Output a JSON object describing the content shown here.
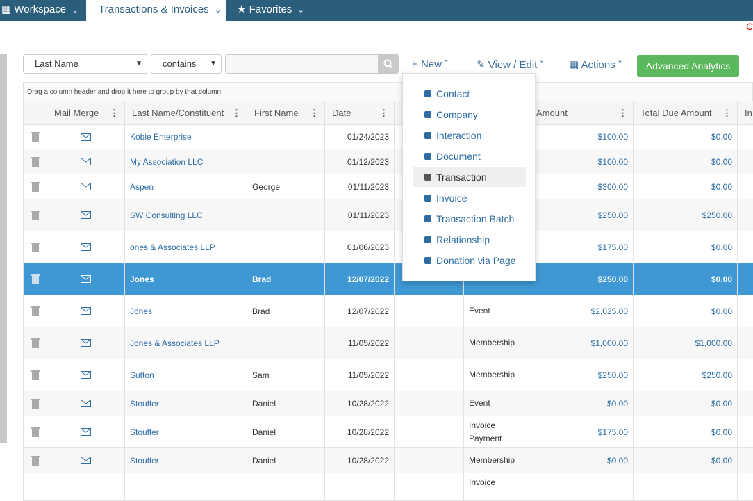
{
  "nav": {
    "tabs": [
      "Workspace",
      "Transactions & Invoices",
      "Favorites"
    ],
    "corner_text": "C"
  },
  "filter": {
    "field": "Last Name",
    "operator": "contains"
  },
  "toolbar": {
    "new": "New",
    "view_edit": "View / Edit",
    "actions": "Actions",
    "analytics": "Advanced Analytics"
  },
  "grid": {
    "group_hint": "Drag a column header and drop it here to group by that column",
    "headers": [
      "Mail Merge",
      "Last Name/Constituent",
      "First Name",
      "Date",
      "Amount",
      "Total Due Amount",
      "In"
    ],
    "rows": [
      {
        "name": "Kobie Enterprise",
        "first": null,
        "date": "01/24/2023",
        "type": null,
        "amount": "$100.00",
        "due": "$0.00"
      },
      {
        "name": "My Association LLC",
        "first": null,
        "date": "01/12/2023",
        "type": null,
        "amount": "$100.00",
        "due": "$0.00"
      },
      {
        "name": "Aspen",
        "first": "George",
        "date": "01/11/2023",
        "type": null,
        "amount": "$300.00",
        "due": "$0.00"
      },
      {
        "name": "SW Consulting LLC",
        "first": null,
        "date": "01/11/2023",
        "type": null,
        "amount": "$250.00",
        "due": "$250.00"
      },
      {
        "name": "ones & Associates LLP",
        "first": null,
        "date": "01/06/2023",
        "type": null,
        "amount": "$175.00",
        "due": "$0.00"
      },
      {
        "name": "Jones",
        "first": "Brad",
        "date": "12/07/2022",
        "type": null,
        "amount": "$250.00",
        "due": "$0.00",
        "selected": true
      },
      {
        "name": "Jones",
        "first": "Brad",
        "date": "12/07/2022",
        "type": "Event",
        "amount": "$2,025.00",
        "due": "$0.00"
      },
      {
        "name": "Jones & Associates LLP",
        "first": null,
        "date": "11/05/2022",
        "type": "Membership",
        "amount": "$1,000.00",
        "due": "$1,000.00"
      },
      {
        "name": "Sutton",
        "first": "Sam",
        "date": "11/05/2022",
        "type": "Membership",
        "amount": "$250.00",
        "due": "$250.00"
      },
      {
        "name": "Stouffer",
        "first": "Daniel",
        "date": "10/28/2022",
        "type": "Event",
        "amount": "$0.00",
        "due": "$0.00"
      },
      {
        "name": "Stouffer",
        "first": "Daniel",
        "date": "10/28/2022",
        "type": "Invoice Payment",
        "amount": "$175.00",
        "due": "$0.00"
      },
      {
        "name": "Stouffer",
        "first": "Daniel",
        "date": "10/28/2022",
        "type": "Membership",
        "amount": "$0.00",
        "due": "$0.00"
      },
      {
        "name": null,
        "first": null,
        "date": null,
        "type": "Invoice",
        "amount": null,
        "due": null
      }
    ]
  },
  "menu": {
    "items": [
      "Contact",
      "Company",
      "Interaction",
      "Document",
      "Transaction",
      "Invoice",
      "Transaction Batch",
      "Relationship",
      "Donation via Page"
    ],
    "hovered": "Transaction"
  }
}
